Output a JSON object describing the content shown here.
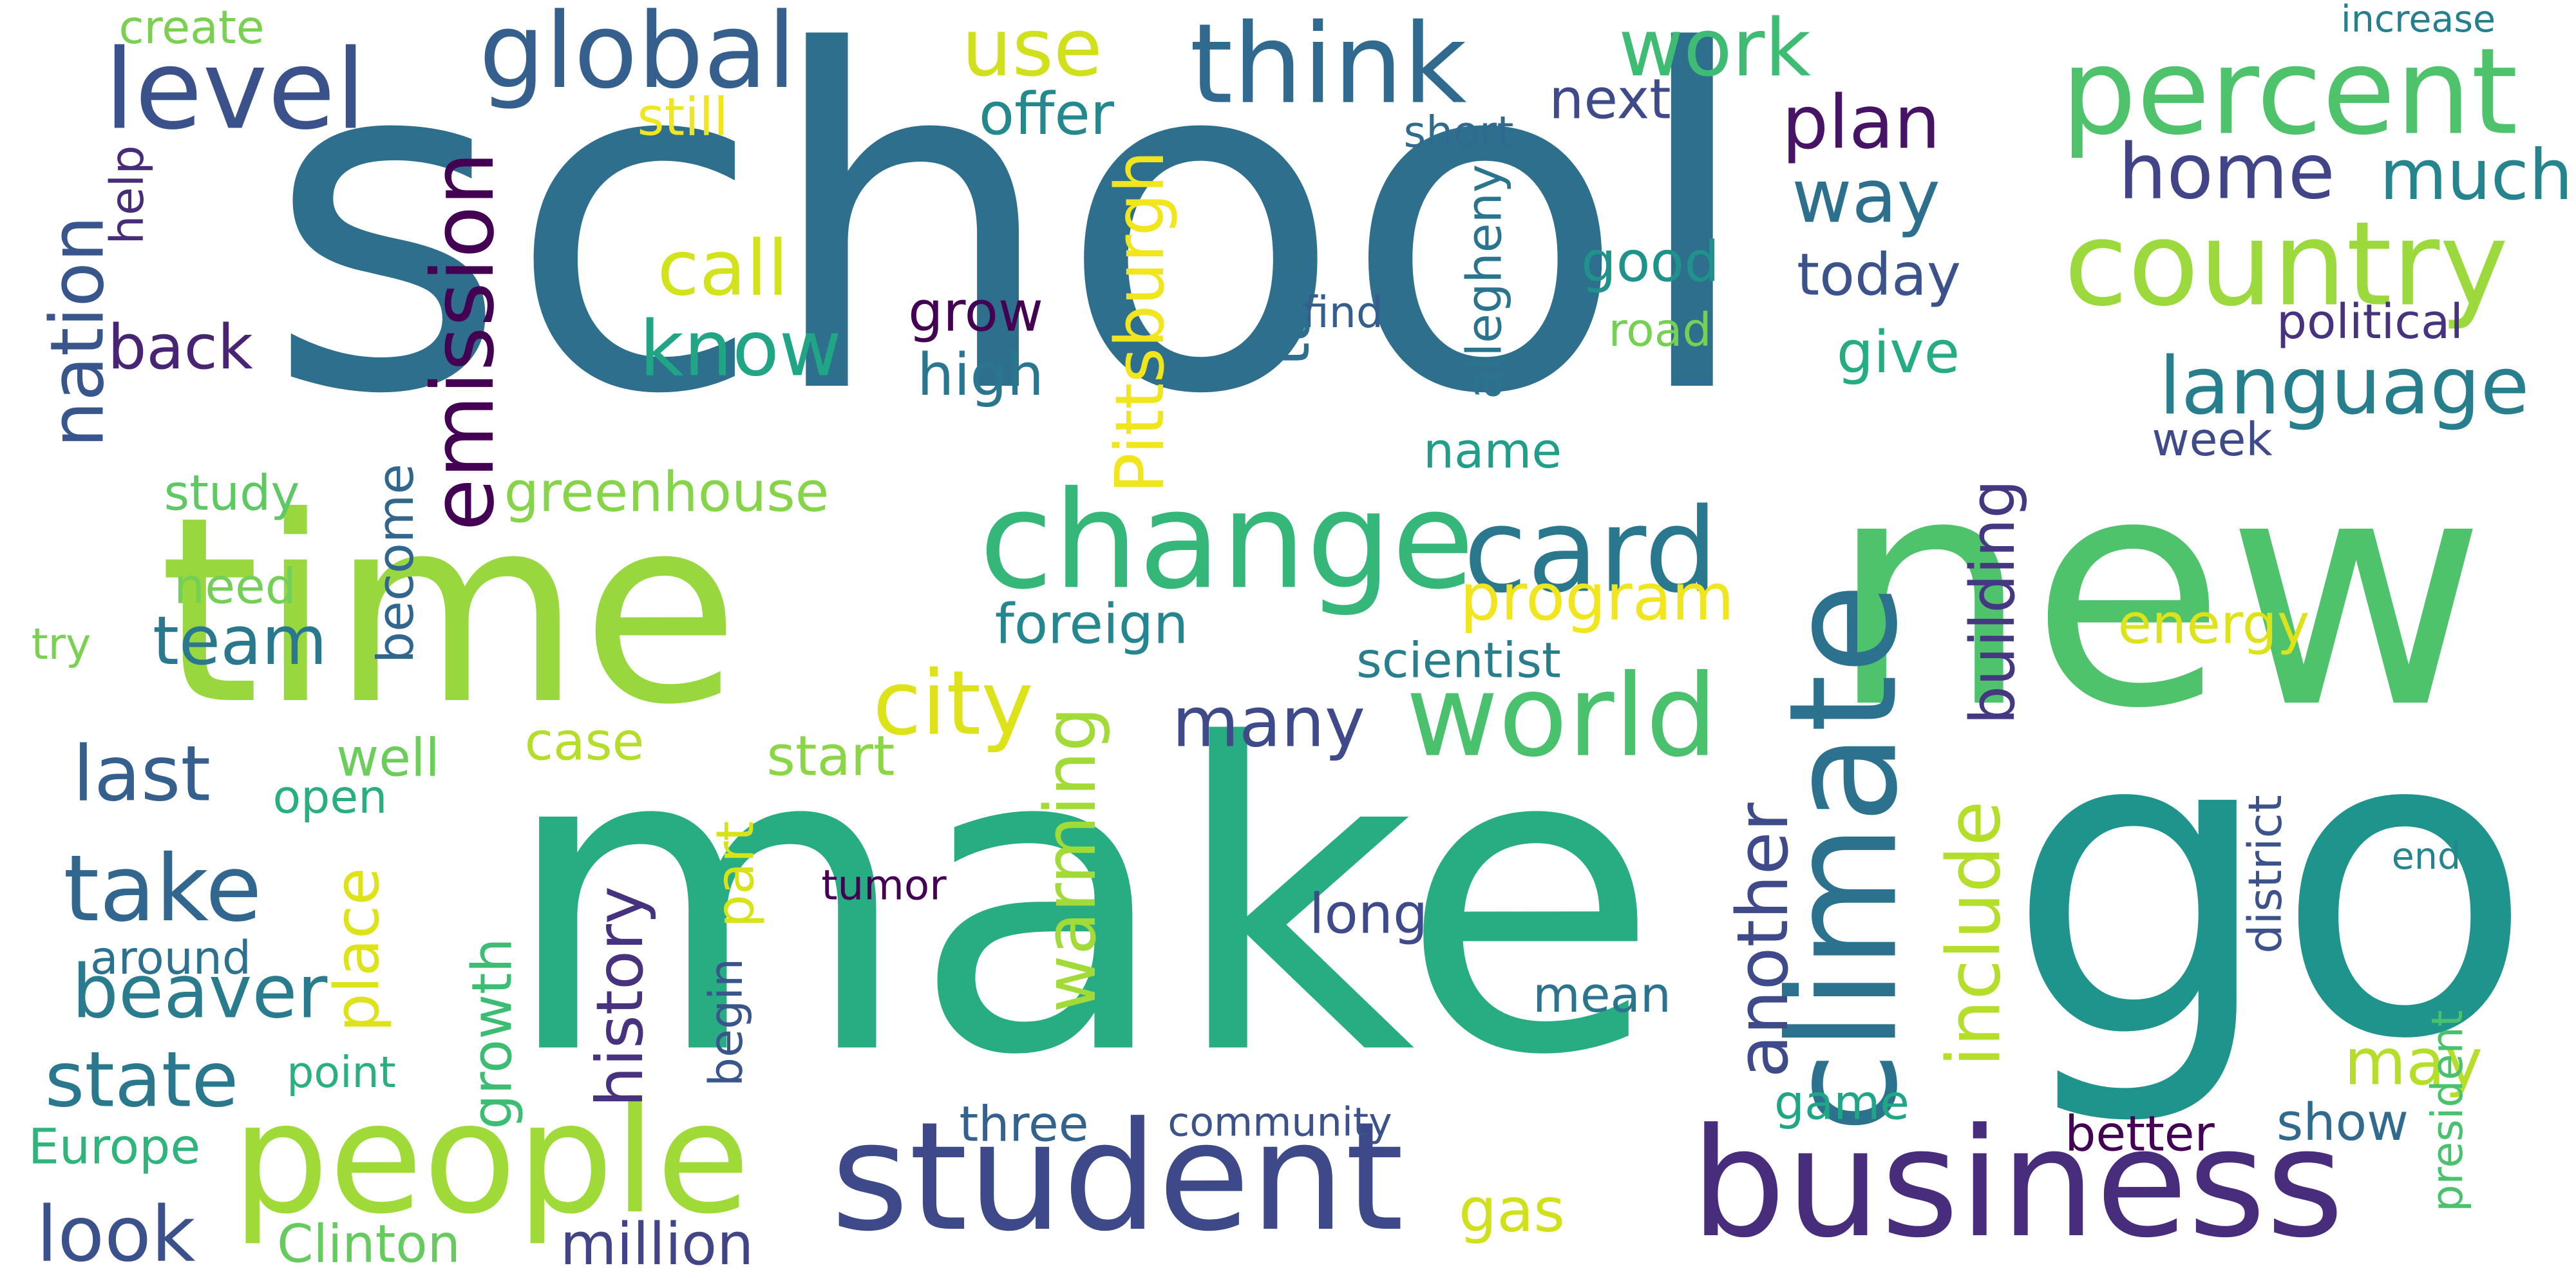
{
  "words": [
    {
      "text": "school",
      "color": "#2e6f8e"
    },
    {
      "text": "time",
      "color": "#98d83e"
    },
    {
      "text": "make",
      "color": "#27ad81"
    },
    {
      "text": "new",
      "color": "#4ec36b"
    },
    {
      "text": "go",
      "color": "#1f948c"
    },
    {
      "text": "change",
      "color": "#35b779"
    },
    {
      "text": "student",
      "color": "#3e4989"
    },
    {
      "text": "business",
      "color": "#472d7b"
    },
    {
      "text": "people",
      "color": "#a0da39"
    },
    {
      "text": "world",
      "color": "#4ac16d"
    },
    {
      "text": "climate",
      "color": "#2c728e"
    },
    {
      "text": "card",
      "color": "#2a788e"
    },
    {
      "text": "country",
      "color": "#9bd93c"
    },
    {
      "text": "percent",
      "color": "#4ec36b"
    },
    {
      "text": "think",
      "color": "#306a8e"
    },
    {
      "text": "global",
      "color": "#355f8d"
    },
    {
      "text": "level",
      "color": "#3b518b"
    },
    {
      "text": "use",
      "color": "#d0e11c"
    },
    {
      "text": "work",
      "color": "#3fbc73"
    },
    {
      "text": "language",
      "color": "#277f8e"
    },
    {
      "text": "home",
      "color": "#414487"
    },
    {
      "text": "much",
      "color": "#25858e"
    },
    {
      "text": "plan",
      "color": "#471365"
    },
    {
      "text": "way",
      "color": "#2d708e"
    },
    {
      "text": "offer",
      "color": "#23898e"
    },
    {
      "text": "next",
      "color": "#3e4a89"
    },
    {
      "text": "short",
      "color": "#306a8e"
    },
    {
      "text": "increase",
      "color": "#277f8e"
    },
    {
      "text": "create",
      "color": "#7ad151"
    },
    {
      "text": "still",
      "color": "#f1e51d"
    },
    {
      "text": "emission",
      "color": "#440154"
    },
    {
      "text": "nation",
      "color": "#39568c"
    },
    {
      "text": "help",
      "color": "#472c7a"
    },
    {
      "text": "call",
      "color": "#d2e21b"
    },
    {
      "text": "know",
      "color": "#21a685"
    },
    {
      "text": "good",
      "color": "#20928c"
    },
    {
      "text": "today",
      "color": "#3b528b"
    },
    {
      "text": "give",
      "color": "#25ac82"
    },
    {
      "text": "political",
      "color": "#46327e"
    },
    {
      "text": "grow",
      "color": "#440154"
    },
    {
      "text": "find",
      "color": "#355e8d"
    },
    {
      "text": "road",
      "color": "#75d054"
    },
    {
      "text": "tax",
      "color": "#2e6e8e"
    },
    {
      "text": "high",
      "color": "#2a768e"
    },
    {
      "text": "allegheny",
      "color": "#2b748e"
    },
    {
      "text": "Pittsburgh",
      "color": "#f1e51d"
    },
    {
      "text": "back",
      "color": "#482475"
    },
    {
      "text": "week",
      "color": "#3e4a89"
    },
    {
      "text": "greenhouse",
      "color": "#86d549"
    },
    {
      "text": "study",
      "color": "#5ec962"
    },
    {
      "text": "name",
      "color": "#1f9e89"
    },
    {
      "text": "building",
      "color": "#453781"
    },
    {
      "text": "program",
      "color": "#f1e51d"
    },
    {
      "text": "become",
      "color": "#31668e"
    },
    {
      "text": "need",
      "color": "#73d056"
    },
    {
      "text": "team",
      "color": "#2a788e"
    },
    {
      "text": "foreign",
      "color": "#24868e"
    },
    {
      "text": "energy",
      "color": "#dde318"
    },
    {
      "text": "try",
      "color": "#7ad151"
    },
    {
      "text": "scientist",
      "color": "#277f8e"
    },
    {
      "text": "city",
      "color": "#dde318"
    },
    {
      "text": "many",
      "color": "#3e4a89"
    },
    {
      "text": "last",
      "color": "#355f8d"
    },
    {
      "text": "well",
      "color": "#6ccd5a"
    },
    {
      "text": "case",
      "color": "#b5de2b"
    },
    {
      "text": "start",
      "color": "#8bd646"
    },
    {
      "text": "warming",
      "color": "#a2da37"
    },
    {
      "text": "another",
      "color": "#3e4a89"
    },
    {
      "text": "include",
      "color": "#b5de2b"
    },
    {
      "text": "open",
      "color": "#29af7f"
    },
    {
      "text": "take",
      "color": "#31668e"
    },
    {
      "text": "district",
      "color": "#3b528b"
    },
    {
      "text": "end",
      "color": "#25848e"
    },
    {
      "text": "beaver",
      "color": "#287c8e"
    },
    {
      "text": "place",
      "color": "#dde318"
    },
    {
      "text": "part",
      "color": "#d8e219"
    },
    {
      "text": "history",
      "color": "#46327e"
    },
    {
      "text": "tumor",
      "color": "#440154"
    },
    {
      "text": "around",
      "color": "#2c728e"
    },
    {
      "text": "long",
      "color": "#3e4a89"
    },
    {
      "text": "state",
      "color": "#2a788e"
    },
    {
      "text": "growth",
      "color": "#3dbc74"
    },
    {
      "text": "begin",
      "color": "#39568c"
    },
    {
      "text": "mean",
      "color": "#2c738e"
    },
    {
      "text": "may",
      "color": "#b5de2b"
    },
    {
      "text": "president",
      "color": "#4ac16d"
    },
    {
      "text": "point",
      "color": "#2ab07f"
    },
    {
      "text": "game",
      "color": "#21a685"
    },
    {
      "text": "three",
      "color": "#33638d"
    },
    {
      "text": "community",
      "color": "#3b528b"
    },
    {
      "text": "show",
      "color": "#306a8e"
    },
    {
      "text": "Europe",
      "color": "#2fb47c"
    },
    {
      "text": "better",
      "color": "#440154"
    },
    {
      "text": "look",
      "color": "#3b518b"
    },
    {
      "text": "Clinton",
      "color": "#65cb5e"
    },
    {
      "text": "gas",
      "color": "#d0e11c"
    },
    {
      "text": "million",
      "color": "#414487"
    }
  ]
}
